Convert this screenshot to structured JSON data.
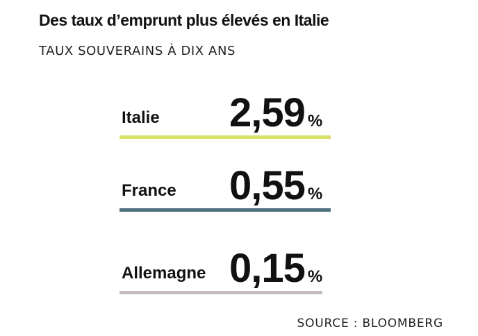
{
  "header": {
    "title": "Des taux d’emprunt plus élevés en Italie",
    "subtitle": "TAUX SOUVERAINS À DIX ANS"
  },
  "chart_data": {
    "type": "table",
    "title": "Des taux d’emprunt plus élevés en Italie",
    "subtitle": "TAUX SOUVERAINS À DIX ANS",
    "unit": "%",
    "rows": [
      {
        "country": "Italie",
        "value": 2.59,
        "display": "2,59",
        "unit": "%",
        "color": "#dbe06a"
      },
      {
        "country": "France",
        "value": 0.55,
        "display": "0,55",
        "unit": "%",
        "color": "#4f6f7f"
      },
      {
        "country": "Allemagne",
        "value": 0.15,
        "display": "0,15",
        "unit": "%",
        "color": "#c8bcc4"
      }
    ]
  },
  "footer": {
    "source": "SOURCE : BLOOMBERG"
  }
}
